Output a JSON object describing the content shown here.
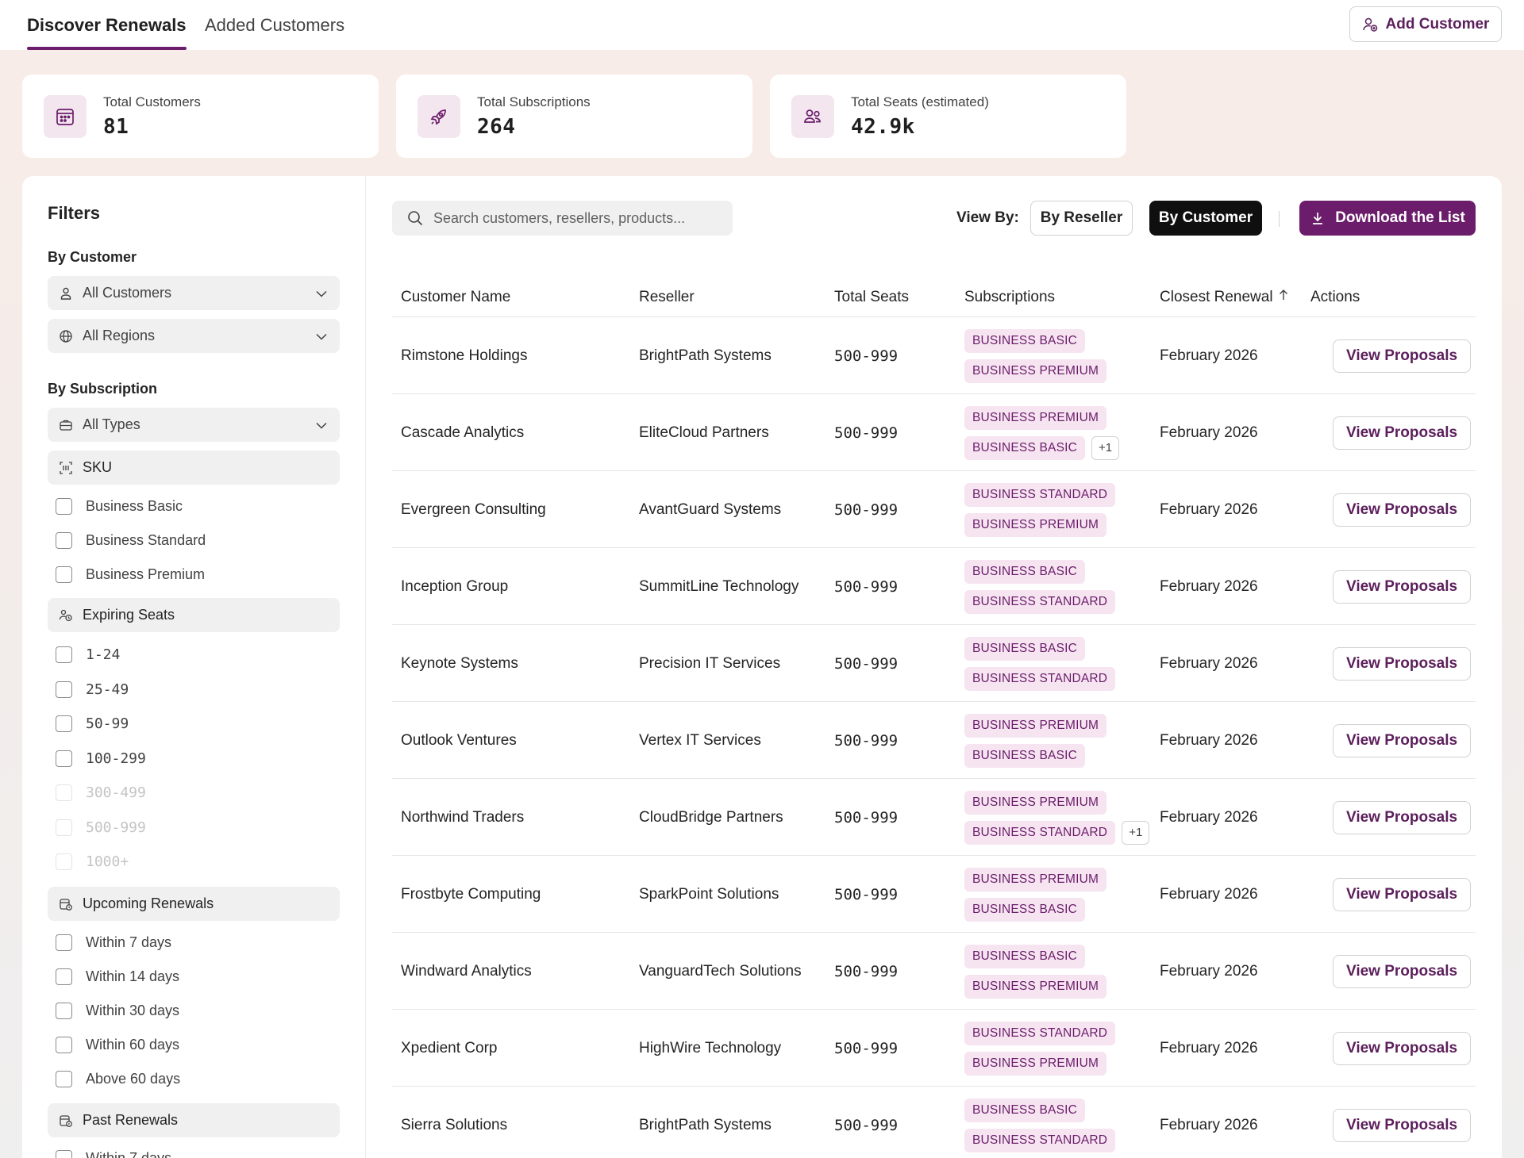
{
  "tabs": [
    {
      "label": "Discover Renewals",
      "active": true
    },
    {
      "label": "Added Customers",
      "active": false
    }
  ],
  "header": {
    "add_customer_label": "Add Customer"
  },
  "stats": [
    {
      "label": "Total Customers",
      "value": "81",
      "icon": "calendar-icon"
    },
    {
      "label": "Total Subscriptions",
      "value": "264",
      "icon": "rocket-icon"
    },
    {
      "label": "Total Seats (estimated)",
      "value": "42.9k",
      "icon": "people-icon"
    }
  ],
  "filters": {
    "title": "Filters",
    "by_customer_label": "By Customer",
    "customer_dropdown": "All Customers",
    "region_dropdown": "All Regions",
    "by_subscription_label": "By Subscription",
    "type_dropdown": "All Types",
    "sku": {
      "label": "SKU",
      "options": [
        "Business Basic",
        "Business Standard",
        "Business Premium"
      ]
    },
    "expiring_seats": {
      "label": "Expiring Seats",
      "options": [
        "1-24",
        "25-49",
        "50-99",
        "100-299",
        "300-499",
        "500-999",
        "1000+"
      ]
    },
    "upcoming_renewals": {
      "label": "Upcoming Renewals",
      "options": [
        "Within 7 days",
        "Within 14 days",
        "Within 30 days",
        "Within 60 days",
        "Above 60 days"
      ]
    },
    "past_renewals": {
      "label": "Past Renewals",
      "options": [
        "Within 7 days"
      ]
    }
  },
  "toolbar": {
    "search_placeholder": "Search customers, resellers, products...",
    "view_by_label": "View By:",
    "by_reseller_label": "By Reseller",
    "by_customer_label": "By Customer",
    "download_label": "Download the List"
  },
  "table": {
    "columns": [
      "Customer Name",
      "Reseller",
      "Total Seats",
      "Subscriptions",
      "Closest Renewal",
      "Actions"
    ],
    "action_label": "View Proposals",
    "rows": [
      {
        "customer": "Rimstone Holdings",
        "reseller": "BrightPath Systems",
        "seats": "500-999",
        "subs": [
          "BUSINESS BASIC",
          "BUSINESS PREMIUM"
        ],
        "more": "",
        "renewal": "February 2026"
      },
      {
        "customer": "Cascade Analytics",
        "reseller": "EliteCloud Partners",
        "seats": "500-999",
        "subs": [
          "BUSINESS PREMIUM",
          "BUSINESS BASIC"
        ],
        "more": "+1",
        "renewal": "February 2026"
      },
      {
        "customer": "Evergreen Consulting",
        "reseller": "AvantGuard Systems",
        "seats": "500-999",
        "subs": [
          "BUSINESS STANDARD",
          "BUSINESS PREMIUM"
        ],
        "more": "",
        "renewal": "February 2026"
      },
      {
        "customer": "Inception Group",
        "reseller": "SummitLine Technology",
        "seats": "500-999",
        "subs": [
          "BUSINESS BASIC",
          "BUSINESS STANDARD"
        ],
        "more": "",
        "renewal": "February 2026"
      },
      {
        "customer": "Keynote Systems",
        "reseller": "Precision IT Services",
        "seats": "500-999",
        "subs": [
          "BUSINESS BASIC",
          "BUSINESS STANDARD"
        ],
        "more": "",
        "renewal": "February 2026"
      },
      {
        "customer": "Outlook Ventures",
        "reseller": "Vertex IT Services",
        "seats": "500-999",
        "subs": [
          "BUSINESS PREMIUM",
          "BUSINESS BASIC"
        ],
        "more": "",
        "renewal": "February 2026"
      },
      {
        "customer": "Northwind Traders",
        "reseller": "CloudBridge Partners",
        "seats": "500-999",
        "subs": [
          "BUSINESS PREMIUM",
          "BUSINESS STANDARD"
        ],
        "more": "+1",
        "renewal": "February 2026"
      },
      {
        "customer": "Frostbyte Computing",
        "reseller": "SparkPoint Solutions",
        "seats": "500-999",
        "subs": [
          "BUSINESS PREMIUM",
          "BUSINESS BASIC"
        ],
        "more": "",
        "renewal": "February 2026"
      },
      {
        "customer": "Windward Analytics",
        "reseller": "VanguardTech Solutions",
        "seats": "500-999",
        "subs": [
          "BUSINESS BASIC",
          "BUSINESS PREMIUM"
        ],
        "more": "",
        "renewal": "February 2026"
      },
      {
        "customer": "Xpedient Corp",
        "reseller": "HighWire Technology",
        "seats": "500-999",
        "subs": [
          "BUSINESS STANDARD",
          "BUSINESS PREMIUM"
        ],
        "more": "",
        "renewal": "February 2026"
      },
      {
        "customer": "Sierra Solutions",
        "reseller": "BrightPath Systems",
        "seats": "500-999",
        "subs": [
          "BUSINESS BASIC",
          "BUSINESS STANDARD"
        ],
        "more": "",
        "renewal": "February 2026"
      }
    ]
  },
  "colors": {
    "brand": "#6b1d6b",
    "badge_bg": "#f6e4f0",
    "active_view": "#0f0f0f"
  }
}
